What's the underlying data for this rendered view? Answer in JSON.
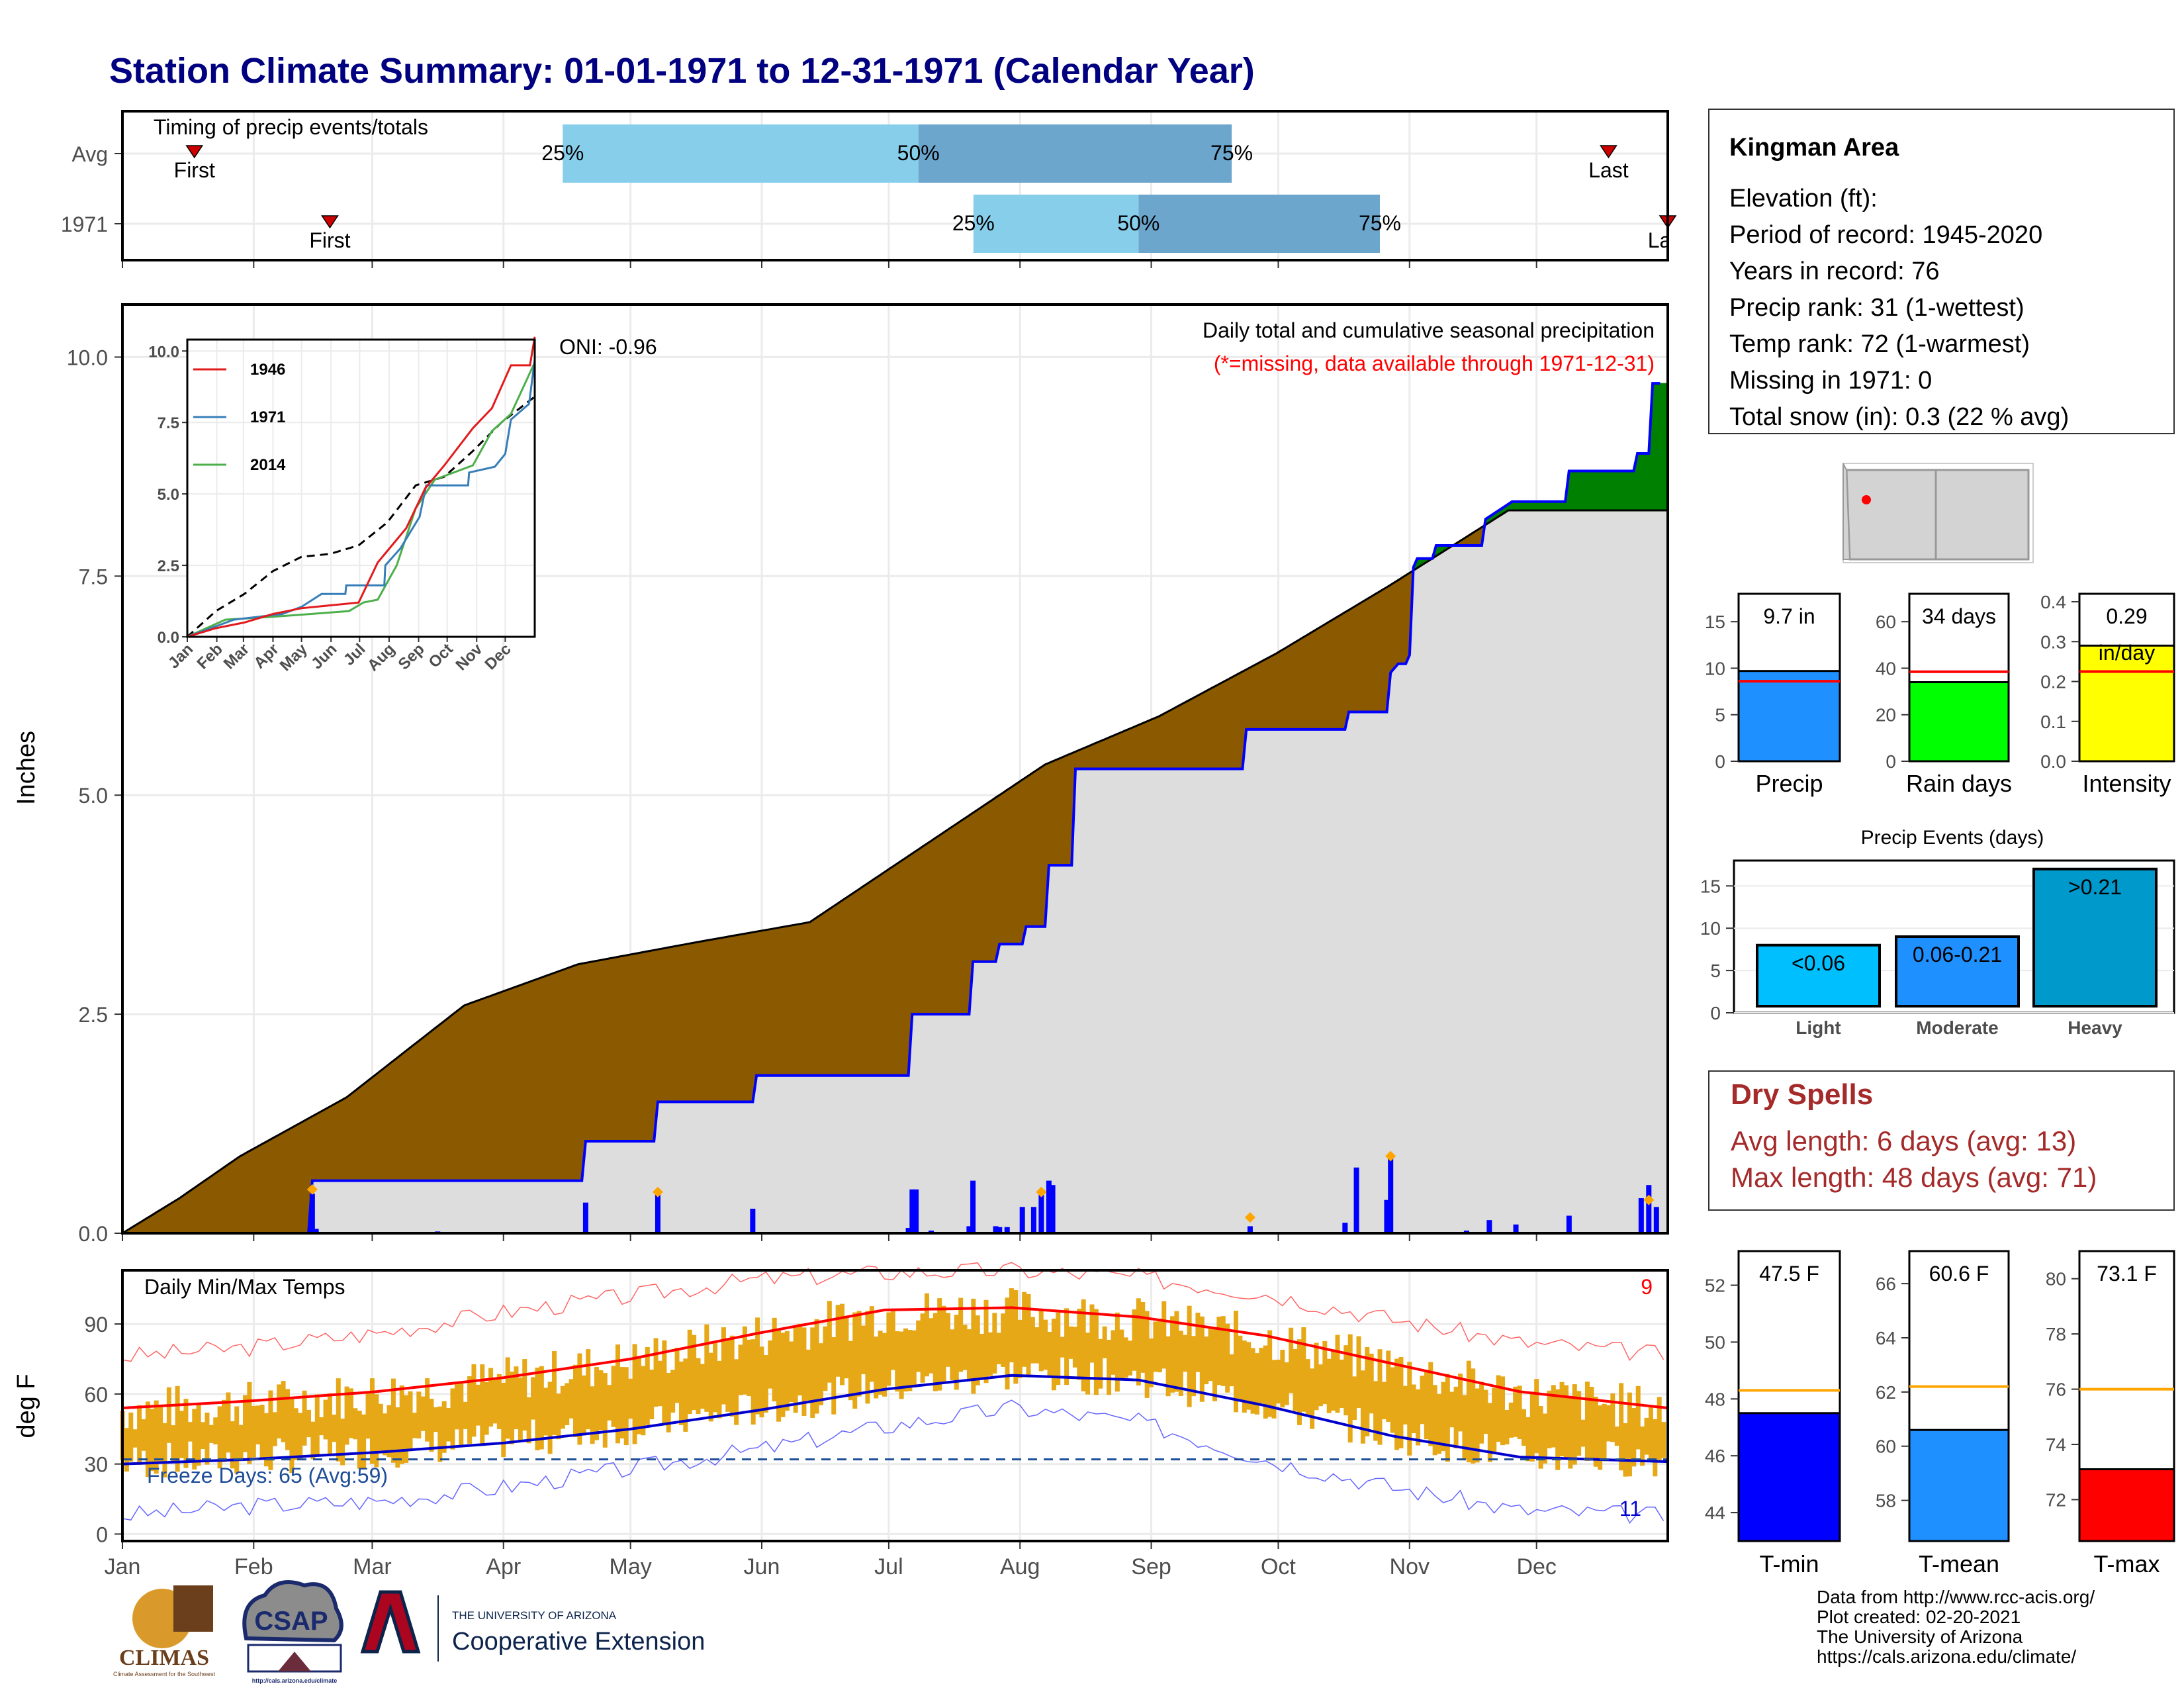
{
  "title": "Station Climate Summary: 01-01-1971 to 12-31-1971 (Calendar Year)",
  "months": [
    "Jan",
    "Feb",
    "Mar",
    "Apr",
    "May",
    "Jun",
    "Jul",
    "Aug",
    "Sep",
    "Oct",
    "Nov",
    "Dec"
  ],
  "timing": {
    "label": "Timing of precip events/totals",
    "rows": [
      {
        "name": "Avg",
        "first_label": "First",
        "last_label": "Last",
        "first_doy": 17,
        "last_doy": 351,
        "p25_doy": 104,
        "p50_doy": 188,
        "p75_doy": 262
      },
      {
        "name": "1971",
        "first_label": "First",
        "last_label": "Last",
        "first_doy": 49,
        "last_doy": 365,
        "p25_doy": 201,
        "p50_doy": 240,
        "p75_doy": 297
      }
    ],
    "pct_labels": [
      "25%",
      "50%",
      "75%"
    ]
  },
  "precip": {
    "ylabel": "Inches",
    "yticks": [
      "0.0",
      "2.5",
      "5.0",
      "7.5",
      "10.0"
    ],
    "title": "Daily total and cumulative seasonal precipitation",
    "missing_note": "(*=missing, data available through 1971-12-31)",
    "oni": "ONI: -0.96",
    "colors": {
      "above": "#008000",
      "below": "#8B5A00",
      "cum_line": "#0000FF",
      "avg_fill": "#DDDDDD",
      "daily_bar": "#0000FF",
      "event_marker": "#FFA500"
    },
    "avg_cum": [
      [
        0,
        0
      ],
      [
        15,
        0.4
      ],
      [
        31,
        0.88
      ],
      [
        59,
        1.55
      ],
      [
        90,
        2.6
      ],
      [
        120,
        3.07
      ],
      [
        151,
        3.32
      ],
      [
        181,
        3.55
      ],
      [
        212,
        4.45
      ],
      [
        243,
        5.35
      ],
      [
        273,
        5.9
      ],
      [
        304,
        6.62
      ],
      [
        334,
        7.4
      ],
      [
        365,
        8.25
      ]
    ],
    "year_cum": [
      [
        0,
        0
      ],
      [
        49,
        0
      ],
      [
        50,
        0.6
      ],
      [
        121,
        0.6
      ],
      [
        122,
        1.05
      ],
      [
        140,
        1.05
      ],
      [
        141,
        1.5
      ],
      [
        166,
        1.5
      ],
      [
        167,
        1.8
      ],
      [
        207,
        1.8
      ],
      [
        208,
        2.5
      ],
      [
        223,
        2.5
      ],
      [
        224,
        3.1
      ],
      [
        230,
        3.1
      ],
      [
        231,
        3.3
      ],
      [
        237,
        3.3
      ],
      [
        238,
        3.5
      ],
      [
        243,
        3.5
      ],
      [
        244,
        4.2
      ],
      [
        250,
        4.2
      ],
      [
        251,
        5.3
      ],
      [
        295,
        5.3
      ],
      [
        296,
        5.75
      ],
      [
        322,
        5.75
      ],
      [
        323,
        5.95
      ],
      [
        333,
        5.95
      ],
      [
        334,
        6.4
      ],
      [
        336,
        6.5
      ],
      [
        338,
        6.5
      ],
      [
        339,
        6.6
      ],
      [
        340,
        7.6
      ],
      [
        341,
        7.7
      ],
      [
        345,
        7.7
      ],
      [
        346,
        7.85
      ],
      [
        358,
        7.85
      ],
      [
        359,
        8.15
      ],
      [
        366,
        8.35
      ],
      [
        380,
        8.35
      ],
      [
        381,
        8.7
      ],
      [
        398,
        8.7
      ],
      [
        399,
        8.9
      ],
      [
        402,
        8.9
      ],
      [
        403,
        9.7
      ],
      [
        405,
        9.7
      ]
    ],
    "daily_events": [
      [
        50,
        0.45
      ],
      [
        51,
        0.05
      ],
      [
        83,
        0.02
      ],
      [
        122,
        0.35
      ],
      [
        141,
        0.45
      ],
      [
        166,
        0.28
      ],
      [
        207,
        0.06
      ],
      [
        208,
        0.5
      ],
      [
        209,
        0.5
      ],
      [
        213,
        0.03
      ],
      [
        223,
        0.08
      ],
      [
        224,
        0.6
      ],
      [
        230,
        0.08
      ],
      [
        231,
        0.07
      ],
      [
        233,
        0.07
      ],
      [
        237,
        0.3
      ],
      [
        240,
        0.3
      ],
      [
        242,
        0.45
      ],
      [
        244,
        0.6
      ],
      [
        245,
        0.55
      ],
      [
        297,
        0.08
      ],
      [
        322,
        0.12
      ],
      [
        325,
        0.75
      ],
      [
        333,
        0.38
      ],
      [
        334,
        0.85
      ],
      [
        354,
        0.03
      ],
      [
        360,
        0.15
      ],
      [
        367,
        0.1
      ],
      [
        381,
        0.2
      ],
      [
        400,
        0.4
      ],
      [
        402,
        0.55
      ],
      [
        404,
        0.3
      ]
    ],
    "event_markers": [
      [
        50,
        0.5
      ],
      [
        141,
        0.47
      ],
      [
        242,
        0.47
      ],
      [
        297,
        0.18
      ],
      [
        334,
        0.88
      ],
      [
        402,
        0.38
      ]
    ],
    "inset": {
      "legend": [
        {
          "name": "1946",
          "color": "#E31A1C"
        },
        {
          "name": "1971",
          "color": "#377EB8"
        },
        {
          "name": "2014",
          "color": "#4DAF4A"
        }
      ],
      "yticks": [
        "0.0",
        "2.5",
        "5.0",
        "7.5",
        "10.0"
      ],
      "months": [
        "Jan",
        "Feb",
        "Mar",
        "Apr",
        "May",
        "Jun",
        "Jul",
        "Aug",
        "Sep",
        "Oct",
        "Nov",
        "Dec"
      ],
      "y1946": [
        [
          0,
          0
        ],
        [
          30,
          0.3
        ],
        [
          60,
          0.5
        ],
        [
          90,
          0.8
        ],
        [
          120,
          1.0
        ],
        [
          150,
          1.1
        ],
        [
          180,
          1.2
        ],
        [
          200,
          2.6
        ],
        [
          210,
          3.0
        ],
        [
          230,
          3.8
        ],
        [
          250,
          5.2
        ],
        [
          270,
          6.0
        ],
        [
          300,
          7.3
        ],
        [
          320,
          8.0
        ],
        [
          340,
          9.5
        ],
        [
          360,
          9.5
        ],
        [
          365,
          10.5
        ]
      ],
      "y1971": [
        [
          0,
          0
        ],
        [
          49,
          0.6
        ],
        [
          100,
          0.8
        ],
        [
          120,
          1.05
        ],
        [
          141,
          1.5
        ],
        [
          166,
          1.5
        ],
        [
          167,
          1.8
        ],
        [
          207,
          1.8
        ],
        [
          208,
          2.5
        ],
        [
          224,
          3.1
        ],
        [
          244,
          4.2
        ],
        [
          251,
          5.3
        ],
        [
          295,
          5.3
        ],
        [
          296,
          5.75
        ],
        [
          323,
          5.95
        ],
        [
          334,
          6.4
        ],
        [
          340,
          7.6
        ],
        [
          359,
          8.15
        ],
        [
          365,
          9.7
        ]
      ],
      "y2014": [
        [
          0,
          0
        ],
        [
          40,
          0.6
        ],
        [
          90,
          0.7
        ],
        [
          130,
          0.8
        ],
        [
          170,
          0.9
        ],
        [
          185,
          1.2
        ],
        [
          200,
          1.3
        ],
        [
          220,
          2.5
        ],
        [
          240,
          4.5
        ],
        [
          260,
          5.5
        ],
        [
          300,
          6.0
        ],
        [
          320,
          7.2
        ],
        [
          340,
          7.8
        ],
        [
          365,
          9.6
        ]
      ],
      "yavg": [
        [
          0,
          0
        ],
        [
          30,
          0.9
        ],
        [
          60,
          1.5
        ],
        [
          90,
          2.3
        ],
        [
          120,
          2.8
        ],
        [
          150,
          2.9
        ],
        [
          180,
          3.2
        ],
        [
          210,
          4.0
        ],
        [
          240,
          5.3
        ],
        [
          270,
          5.6
        ],
        [
          300,
          6.5
        ],
        [
          330,
          7.5
        ],
        [
          365,
          8.4
        ]
      ]
    }
  },
  "temps": {
    "ylabel": "deg F",
    "yticks": [
      "0",
      "30",
      "60",
      "90"
    ],
    "title": "Daily Min/Max Temps",
    "freeze_label": "Freeze Days: 65 (Avg:59)",
    "top_count": "9",
    "bottom_count": "11",
    "colors": {
      "bar": "#E6A817",
      "avg_max": "#FF0000",
      "avg_min": "#0000CD",
      "record_max": "#FF6666",
      "record_min": "#6666FF"
    },
    "avg_max": [
      [
        0,
        54
      ],
      [
        30,
        57
      ],
      [
        60,
        61
      ],
      [
        90,
        67
      ],
      [
        120,
        75
      ],
      [
        150,
        86
      ],
      [
        180,
        96
      ],
      [
        210,
        97
      ],
      [
        240,
        93
      ],
      [
        270,
        85
      ],
      [
        300,
        73
      ],
      [
        330,
        61
      ],
      [
        365,
        54
      ]
    ],
    "avg_min": [
      [
        0,
        30
      ],
      [
        30,
        32
      ],
      [
        60,
        35
      ],
      [
        90,
        39
      ],
      [
        120,
        45
      ],
      [
        150,
        53
      ],
      [
        180,
        62
      ],
      [
        210,
        68
      ],
      [
        240,
        66
      ],
      [
        270,
        55
      ],
      [
        300,
        42
      ],
      [
        330,
        33
      ],
      [
        365,
        31
      ]
    ],
    "rec_max": [
      [
        0,
        76
      ],
      [
        30,
        80
      ],
      [
        60,
        86
      ],
      [
        90,
        95
      ],
      [
        120,
        102
      ],
      [
        150,
        109
      ],
      [
        180,
        112
      ],
      [
        210,
        113
      ],
      [
        240,
        110
      ],
      [
        270,
        103
      ],
      [
        300,
        92
      ],
      [
        330,
        82
      ],
      [
        365,
        77
      ]
    ],
    "rec_min": [
      [
        0,
        8
      ],
      [
        30,
        12
      ],
      [
        60,
        14
      ],
      [
        90,
        20
      ],
      [
        120,
        28
      ],
      [
        150,
        36
      ],
      [
        180,
        46
      ],
      [
        210,
        54
      ],
      [
        240,
        48
      ],
      [
        270,
        32
      ],
      [
        300,
        20
      ],
      [
        330,
        10
      ],
      [
        365,
        8
      ]
    ]
  },
  "station": {
    "name": "Kingman Area",
    "lines": [
      "Elevation (ft):",
      "Period of record: 1945-2020",
      "Years in record: 76",
      "Precip rank: 31 (1-wettest)",
      "Temp rank: 72 (1-warmest)",
      "Missing in 1971: 0",
      "Total snow (in): 0.3 (22 % avg)"
    ]
  },
  "mini_bars": [
    {
      "label": "Precip",
      "value_label": "9.7 in",
      "value": 9.7,
      "avg": 8.6,
      "ymax": 18,
      "yticks": [
        "0",
        "5",
        "10",
        "15"
      ],
      "tickvals": [
        0,
        5,
        10,
        15
      ],
      "color": "#1E90FF"
    },
    {
      "label": "Rain days",
      "value_label": "34 days",
      "value": 34,
      "avg": 38.5,
      "ymax": 72,
      "yticks": [
        "0",
        "20",
        "40",
        "60"
      ],
      "tickvals": [
        0,
        20,
        40,
        60
      ],
      "color": "#00FF00"
    },
    {
      "label": "Intensity",
      "value_label": "0.29",
      "value_label2": "in/day",
      "value": 0.29,
      "avg": 0.225,
      "ymax": 0.42,
      "yticks": [
        "0.0",
        "0.1",
        "0.2",
        "0.3",
        "0.4"
      ],
      "tickvals": [
        0,
        0.1,
        0.2,
        0.3,
        0.4
      ],
      "color": "#FFFF00"
    }
  ],
  "events": {
    "title": "Precip Events (days)",
    "yticks": [
      "0",
      "5",
      "10",
      "15"
    ],
    "bars": [
      {
        "label": "Light",
        "value_label": "<0.06",
        "value": 8,
        "color": "#00BFFF"
      },
      {
        "label": "Moderate",
        "value_label": "0.06-0.21",
        "value": 9,
        "color": "#1E90FF"
      },
      {
        "label": "Heavy",
        "value_label": ">0.21",
        "value": 17,
        "color": "#0099CC"
      }
    ]
  },
  "dry_spells": {
    "title": "Dry Spells",
    "avg": "Avg length: 6 days (avg: 13)",
    "max": "Max length: 48 days (avg: 71)"
  },
  "temp_bars": [
    {
      "label": "T-min",
      "value_label": "47.5 F",
      "value": 47.5,
      "avg": 48.3,
      "ymin": 43,
      "ymax": 53.2,
      "yticks": [
        "44",
        "46",
        "48",
        "50",
        "52"
      ],
      "tickvals": [
        44,
        46,
        48,
        50,
        52
      ],
      "color": "#0000FF"
    },
    {
      "label": "T-mean",
      "value_label": "60.6 F",
      "value": 60.6,
      "avg": 62.2,
      "ymin": 56.5,
      "ymax": 67.2,
      "yticks": [
        "58",
        "60",
        "62",
        "64",
        "66"
      ],
      "tickvals": [
        58,
        60,
        62,
        64,
        66
      ],
      "color": "#1E90FF"
    },
    {
      "label": "T-max",
      "value_label": "73.1 F",
      "value": 73.1,
      "avg": 76.0,
      "ymin": 70.5,
      "ymax": 81,
      "yticks": [
        "72",
        "74",
        "76",
        "78",
        "80"
      ],
      "tickvals": [
        72,
        74,
        76,
        78,
        80
      ],
      "color": "#FF0000"
    }
  ],
  "credits": [
    "Data from http://www.rcc-acis.org/",
    "Plot created: 02-20-2021",
    "The University of Arizona",
    "https://cals.arizona.edu/climate/"
  ],
  "logos": {
    "climas": "CLIMAS",
    "climas_sub": "Climate Assessment for the Southwest",
    "csap": "CSAP",
    "csap_url": "http://cals.arizona.edu/climate",
    "ua_top": "THE UNIVERSITY OF ARIZONA",
    "ua_bottom": "Cooperative Extension"
  }
}
